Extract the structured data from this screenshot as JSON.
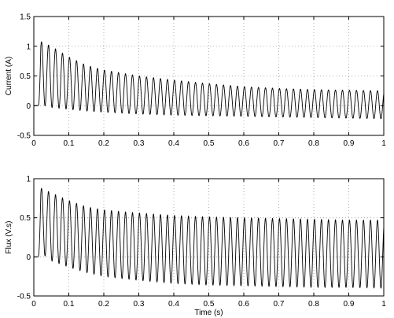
{
  "chart_data": [
    {
      "type": "line",
      "title": "",
      "xlabel": "",
      "ylabel": "Current (A)",
      "xlim": [
        0,
        1
      ],
      "ylim": [
        -0.5,
        1.5
      ],
      "xticks": [
        0,
        0.1,
        0.2,
        0.3,
        0.4,
        0.5,
        0.6,
        0.7,
        0.8,
        0.9,
        1
      ],
      "yticks": [
        -0.5,
        0,
        0.5,
        1,
        1.5
      ],
      "xtick_labels": [
        "0",
        "0.1",
        "0.2",
        "0.3",
        "0.4",
        "0.5",
        "0.6",
        "0.7",
        "0.8",
        "0.9",
        "1"
      ],
      "ytick_labels": [
        "-0.5",
        "0",
        "0.5",
        "1",
        "1.5"
      ],
      "grid": true,
      "series": [
        {
          "frequency_hz": 50,
          "signal_start_s": 0.012,
          "envelope": {
            "t": [
              0.012,
              0.02,
              0.03,
              0.05,
              0.1,
              0.15,
              0.2,
              0.3,
              0.4,
              0.5,
              0.6,
              0.7,
              0.8,
              0.9,
              1.0
            ],
            "upper": [
              0.0,
              1.08,
              1.05,
              1.0,
              0.82,
              0.68,
              0.6,
              0.5,
              0.43,
              0.37,
              0.32,
              0.29,
              0.27,
              0.26,
              0.25
            ],
            "lower": [
              0.0,
              0.02,
              0.0,
              -0.03,
              -0.06,
              -0.09,
              -0.11,
              -0.14,
              -0.16,
              -0.17,
              -0.18,
              -0.19,
              -0.2,
              -0.21,
              -0.22
            ]
          }
        }
      ]
    },
    {
      "type": "line",
      "title": "",
      "xlabel": "Time (s)",
      "ylabel": "Flux (V.s)",
      "xlim": [
        0,
        1
      ],
      "ylim": [
        -0.5,
        1
      ],
      "xticks": [
        0,
        0.1,
        0.2,
        0.3,
        0.4,
        0.5,
        0.6,
        0.7,
        0.8,
        0.9,
        1
      ],
      "yticks": [
        -0.5,
        0,
        0.5,
        1
      ],
      "xtick_labels": [
        "0",
        "0.1",
        "0.2",
        "0.3",
        "0.4",
        "0.5",
        "0.6",
        "0.7",
        "0.8",
        "0.9",
        "1"
      ],
      "ytick_labels": [
        "-0.5",
        "0",
        "0.5",
        "1"
      ],
      "grid": true,
      "series": [
        {
          "frequency_hz": 50,
          "signal_start_s": 0.012,
          "envelope": {
            "t": [
              0.012,
              0.02,
              0.03,
              0.05,
              0.1,
              0.15,
              0.2,
              0.3,
              0.4,
              0.5,
              0.6,
              0.7,
              0.8,
              0.9,
              1.0
            ],
            "upper": [
              0.0,
              0.88,
              0.86,
              0.82,
              0.72,
              0.64,
              0.6,
              0.56,
              0.53,
              0.51,
              0.5,
              0.49,
              0.48,
              0.47,
              0.47
            ],
            "lower": [
              0.0,
              0.05,
              0.02,
              -0.05,
              -0.13,
              -0.2,
              -0.25,
              -0.3,
              -0.34,
              -0.36,
              -0.37,
              -0.38,
              -0.39,
              -0.39,
              -0.4
            ]
          }
        }
      ]
    }
  ]
}
